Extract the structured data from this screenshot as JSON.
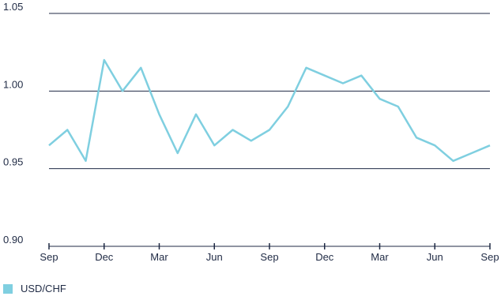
{
  "chart_data": {
    "type": "line",
    "title": "",
    "xlabel": "",
    "ylabel": "",
    "ylim": [
      0.9,
      1.05
    ],
    "grid": "horizontal",
    "yticks": [
      "0.90",
      "0.95",
      "1.00",
      "1.05"
    ],
    "xticks": [
      "Sep",
      "Dec",
      "Mar",
      "Jun",
      "Sep",
      "Dec",
      "Mar",
      "Jun",
      "Sep"
    ],
    "x": [
      "Sep 2015",
      "Oct 2015",
      "Nov 2015",
      "Dec 2015",
      "Jan 2016",
      "Feb 2016",
      "Mar 2016",
      "Apr 2016",
      "May 2016",
      "Jun 2016",
      "Jul 2016",
      "Aug 2016",
      "Sep 2016",
      "Oct 2016",
      "Nov 2016",
      "Dec 2016",
      "Jan 2017",
      "Feb 2017",
      "Mar 2017",
      "Apr 2017",
      "May 2017",
      "Jun 2017",
      "Jul 2017",
      "Aug 2017",
      "Sep 2017"
    ],
    "series": [
      {
        "name": "USD/CHF",
        "color": "#7fcfe0",
        "values": [
          0.965,
          0.975,
          0.955,
          1.02,
          1.0,
          1.015,
          0.985,
          0.96,
          0.985,
          0.965,
          0.975,
          0.968,
          0.975,
          0.99,
          1.015,
          1.01,
          1.005,
          1.01,
          0.995,
          0.99,
          0.97,
          0.965,
          0.955,
          0.96,
          0.965
        ]
      }
    ]
  },
  "legend": {
    "label": "USD/CHF",
    "color": "#7fcfe0"
  }
}
